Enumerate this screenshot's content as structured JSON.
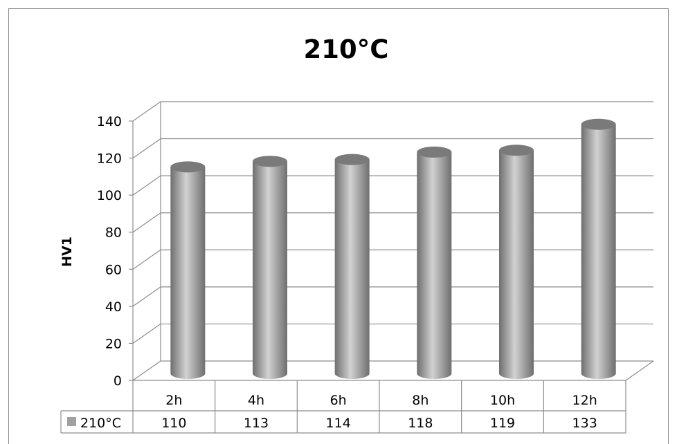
{
  "chart_data": {
    "type": "bar",
    "bar_shape": "cylinder-3d",
    "title": "210°C",
    "ylabel": "HV1",
    "xlabel": "",
    "categories": [
      "2h",
      "4h",
      "6h",
      "8h",
      "10h",
      "12h"
    ],
    "series": [
      {
        "name": "210°C",
        "values": [
          110,
          113,
          114,
          118,
          119,
          133
        ]
      }
    ],
    "ylim": [
      0,
      140
    ],
    "yticks": [
      0,
      20,
      40,
      60,
      80,
      100,
      120,
      140
    ],
    "grid": true,
    "legend": "data-table-left",
    "data_table": true,
    "colors": {
      "bar": "#a0a0a0",
      "bar_dark": "#6e6e6e",
      "bar_light": "#d2d2d2",
      "bar_top": "#7a7a7a",
      "grid": "#8c8c8c",
      "legend_key": "#a0a0a0"
    }
  }
}
